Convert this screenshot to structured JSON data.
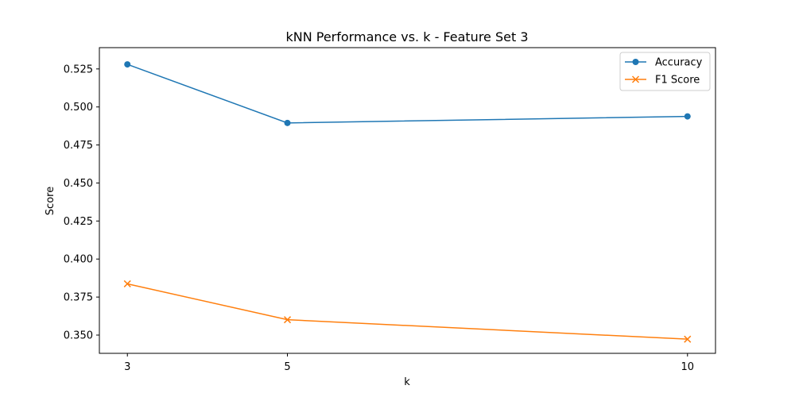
{
  "chart_data": {
    "type": "line",
    "title": "kNN Performance vs. k - Feature Set 3",
    "xlabel": "k",
    "ylabel": "Score",
    "x": [
      3,
      5,
      10
    ],
    "x_ticks": [
      "3",
      "5",
      "10"
    ],
    "xlim": [
      2.65,
      10.35
    ],
    "ylim": [
      0.338,
      0.539
    ],
    "y_ticks": [
      0.35,
      0.375,
      0.4,
      0.425,
      0.45,
      0.475,
      0.5,
      0.525
    ],
    "y_tick_labels": [
      "0.350",
      "0.375",
      "0.400",
      "0.425",
      "0.450",
      "0.475",
      "0.500",
      "0.525"
    ],
    "grid": false,
    "legend_position": "top-right",
    "series": [
      {
        "name": "Accuracy",
        "values": [
          0.528,
          0.4895,
          0.4938
        ],
        "color": "#1f77b4",
        "marker": "circle"
      },
      {
        "name": "F1 Score",
        "values": [
          0.3837,
          0.3601,
          0.3473
        ],
        "color": "#ff7f0e",
        "marker": "x"
      }
    ]
  }
}
